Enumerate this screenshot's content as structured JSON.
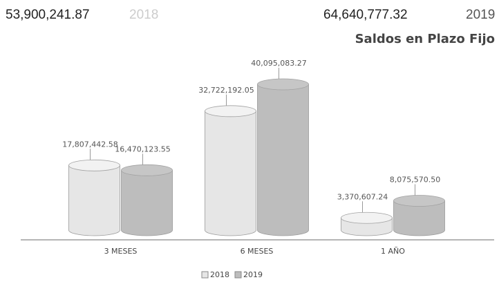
{
  "chart_data": {
    "type": "bar3d",
    "title": "Saldos en Plazo Fijo",
    "totals": [
      "53,900,241.87",
      "64,640,777.32"
    ],
    "categories": [
      "3 MESES",
      "6 MESES",
      "1 AÑO"
    ],
    "series": [
      {
        "name": "2018",
        "color": "#e6e6e6",
        "values": [
          17807442.58,
          32722192.05,
          3370607.24
        ],
        "value_labels": [
          "17,807,442.58",
          "32,722,192.05",
          "3,370,607.24"
        ]
      },
      {
        "name": "2019",
        "color": "#bdbdbd",
        "values": [
          16470123.55,
          40095083.27,
          8075570.5
        ],
        "value_labels": [
          "16,470,123.55",
          "40,095,083.27",
          "8,075,570.50"
        ]
      }
    ]
  }
}
